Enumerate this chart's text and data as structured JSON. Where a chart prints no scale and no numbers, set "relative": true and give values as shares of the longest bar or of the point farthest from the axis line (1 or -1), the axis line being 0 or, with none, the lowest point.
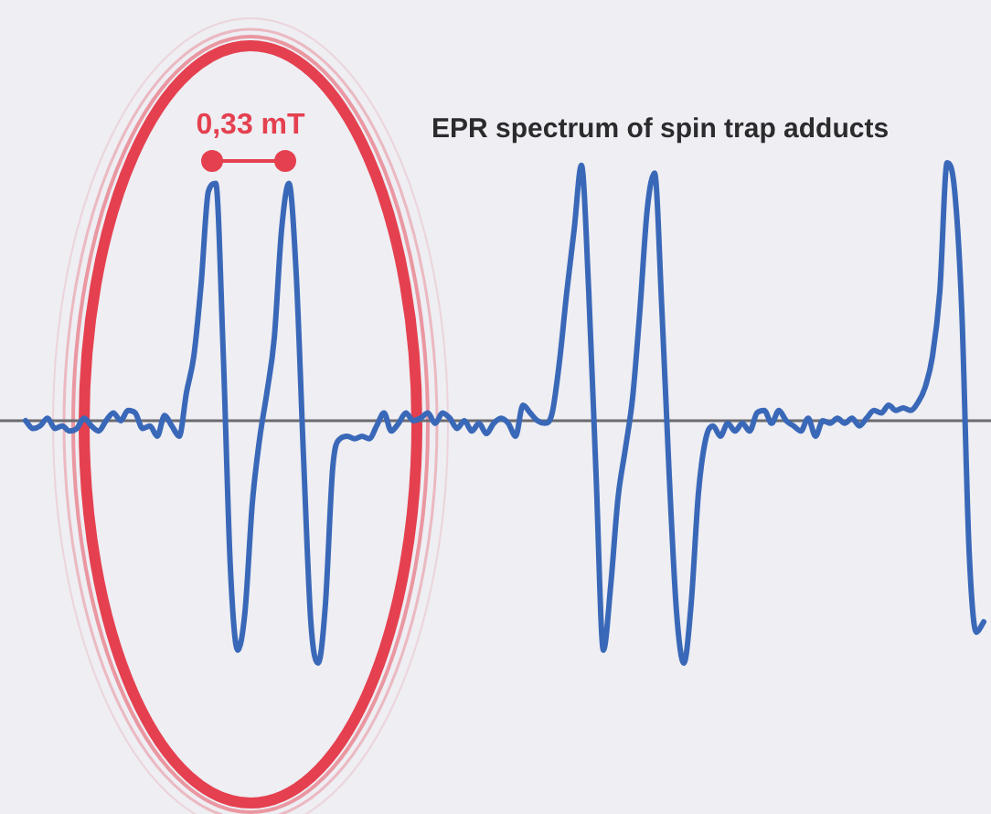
{
  "chart_data": {
    "type": "line",
    "title": "EPR spectrum of spin trap adducts",
    "relative": true,
    "legend": false,
    "marker": "none",
    "annotations": [
      "0,33 mT"
    ],
    "categories": [
      null,
      null,
      null,
      null,
      null,
      null,
      null,
      null,
      null,
      null,
      null,
      null,
      null,
      null,
      null,
      null,
      null,
      null,
      null,
      null,
      null,
      null,
      null,
      null,
      null,
      null,
      null,
      null,
      null,
      null,
      null,
      null,
      null,
      null,
      null,
      null,
      null,
      null,
      null,
      null,
      null,
      null,
      null,
      null,
      null,
      null,
      null,
      null,
      null,
      null,
      null,
      null,
      null,
      null,
      null,
      null,
      null,
      null,
      null,
      null,
      null,
      null,
      null,
      null,
      null,
      null,
      null,
      null,
      null,
      null,
      null,
      null,
      null,
      null,
      null,
      null,
      null,
      null,
      null,
      null,
      null,
      null,
      null,
      null,
      null,
      null,
      null,
      null,
      null,
      null,
      null,
      null,
      null,
      null,
      null,
      null,
      null,
      null,
      null,
      null,
      null,
      null,
      null,
      null,
      null,
      null,
      null,
      null,
      null,
      null,
      null,
      null,
      null,
      null,
      null,
      null,
      null,
      null,
      null,
      null,
      null,
      null,
      null,
      null,
      null,
      null,
      null,
      null,
      null,
      null,
      null,
      null
    ],
    "series": [
      {
        "color": "#3a68b8",
        "values": [
          0.0,
          -0.03,
          -0.02,
          0.01,
          -0.03,
          -0.02,
          -0.04,
          -0.03,
          0.01,
          -0.02,
          -0.04,
          0.0,
          0.03,
          0.0,
          0.04,
          0.03,
          -0.03,
          -0.02,
          -0.06,
          0.02,
          -0.02,
          -0.06,
          0.11,
          0.25,
          0.53,
          0.89,
          0.92,
          0.28,
          -0.57,
          -0.89,
          -0.74,
          -0.32,
          -0.07,
          0.11,
          0.32,
          0.74,
          0.92,
          0.57,
          -0.14,
          -0.78,
          -0.94,
          -0.71,
          -0.18,
          -0.07,
          -0.06,
          -0.07,
          -0.06,
          -0.07,
          -0.02,
          0.03,
          -0.04,
          -0.01,
          0.03,
          0.0,
          0.01,
          0.03,
          -0.01,
          0.03,
          0.01,
          -0.03,
          0.0,
          -0.04,
          -0.01,
          -0.05,
          -0.01,
          0.01,
          -0.01,
          -0.06,
          0.06,
          0.03,
          0.0,
          -0.01,
          0.03,
          0.23,
          0.5,
          0.74,
          0.99,
          0.5,
          -0.21,
          -0.89,
          -0.64,
          -0.3,
          -0.11,
          0.09,
          0.43,
          0.82,
          0.96,
          0.43,
          -0.21,
          -0.74,
          -0.94,
          -0.71,
          -0.28,
          -0.07,
          -0.02,
          -0.06,
          -0.01,
          -0.04,
          -0.01,
          -0.04,
          0.03,
          0.04,
          -0.01,
          0.04,
          0.0,
          -0.02,
          -0.04,
          0.01,
          -0.06,
          0.0,
          -0.01,
          0.01,
          -0.01,
          0.01,
          -0.02,
          0.01,
          0.04,
          0.03,
          0.06,
          0.04,
          0.05,
          0.04,
          0.07,
          0.13,
          0.25,
          0.5,
          1.0,
          0.9,
          0.43,
          -0.5,
          -0.82,
          -0.78
        ]
      }
    ]
  }
}
